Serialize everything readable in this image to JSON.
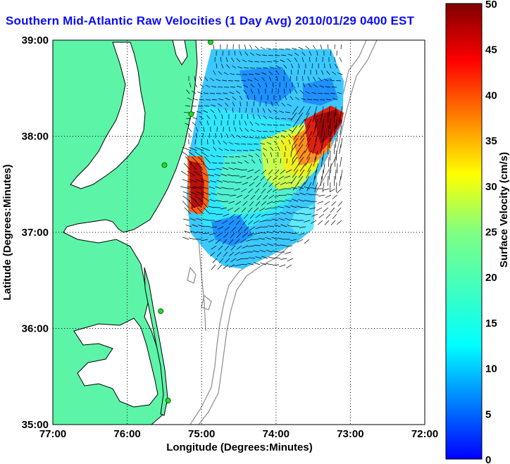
{
  "title": "Southern Mid-Atlantic Raw Velocities (1 Day Avg) 2010/01/29 0400 EST",
  "map": {
    "xlabel": "Longitude (Degrees:Minutes)",
    "ylabel": "Latitude (Degrees:Minutes)",
    "x_ticks": [
      "77:00",
      "76:00",
      "75:00",
      "74:00",
      "73:00",
      "72:00"
    ],
    "y_ticks": [
      "39:00",
      "38:00",
      "37:00",
      "36:00",
      "35:00"
    ],
    "lon_range": [
      -77,
      -72
    ],
    "lat_range": [
      35,
      39
    ],
    "land_color": "#5cf5a8",
    "coast_color": "#000000",
    "bathymetry_color": "#8c8c8c",
    "grid": "dotted"
  },
  "colorbar": {
    "label": "Surface Velocity (cm/s)",
    "min": 0,
    "max": 50,
    "ticks": [
      "50",
      "45",
      "40",
      "35",
      "30",
      "25",
      "20",
      "15",
      "10",
      "5",
      "0"
    ],
    "colormap": "jet"
  },
  "stations": [
    {
      "lon": -74.88,
      "lat": 38.98
    },
    {
      "lon": -75.14,
      "lat": 38.23
    },
    {
      "lon": -75.5,
      "lat": 37.7
    },
    {
      "lon": -75.55,
      "lat": 36.18
    },
    {
      "lon": -75.45,
      "lat": 35.25
    }
  ]
}
